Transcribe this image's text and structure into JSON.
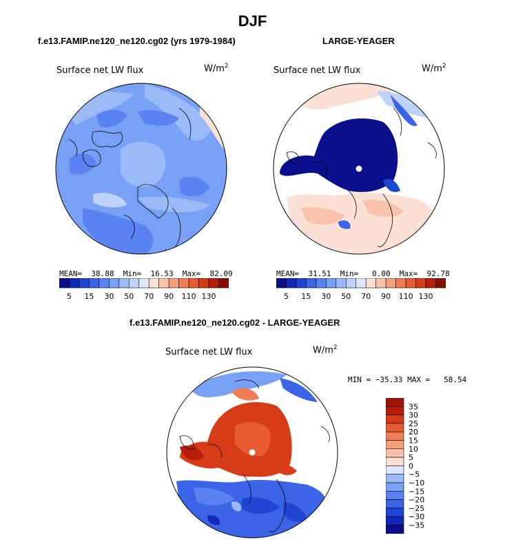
{
  "figure": {
    "title": "DJF"
  },
  "palette_abs": [
    "#0a0f8c",
    "#1228b8",
    "#1e46d2",
    "#3c64e6",
    "#5a82f0",
    "#78a0f5",
    "#9abaf8",
    "#bed3fa",
    "#dfe7fa",
    "#fbe1d5",
    "#f8c2ad",
    "#f5a07d",
    "#f07d55",
    "#e85c32",
    "#d73c19",
    "#b41e0a",
    "#820f06"
  ],
  "palette_diff": [
    "#0a0f8c",
    "#1228b8",
    "#1e46d2",
    "#3c64e6",
    "#5a82f0",
    "#78a0f5",
    "#9abaf8",
    "#dce6f8",
    "#fbe1d5",
    "#f8c2ad",
    "#f5a07d",
    "#f07d55",
    "#e85c32",
    "#d73c19",
    "#b41e0a",
    "#a01508"
  ],
  "chart_data": [
    {
      "type": "heatmap",
      "title": "f.e13.FAMIP.ne120_ne120.cg02 (yrs 1979-1984)",
      "subtitle": "Surface net LW flux",
      "units": "W/m",
      "units_exp": "2",
      "projection": "polar",
      "stats": {
        "mean": "38.88",
        "min": "16.53",
        "max": "82.09"
      },
      "stats_text": "MEAN=  38.88  Min=  16.53  Max=  82.09",
      "colorbar": {
        "orientation": "horizontal",
        "levels": [
          5,
          10,
          15,
          20,
          30,
          40,
          50,
          60,
          70,
          80,
          90,
          100,
          110,
          120,
          130
        ],
        "tick_labels": [
          "5",
          "15",
          "30",
          "50",
          "70",
          "90",
          "110",
          "130"
        ]
      }
    },
    {
      "type": "heatmap",
      "title": "LARGE-YEAGER",
      "subtitle": "Surface net LW flux",
      "units": "W/m",
      "units_exp": "2",
      "projection": "polar",
      "stats": {
        "mean": "31.51",
        "min": "0.00",
        "max": "92.78"
      },
      "stats_text": "MEAN=  31.51  Min=   0.00  Max=  92.78",
      "colorbar": {
        "orientation": "horizontal",
        "levels": [
          5,
          10,
          15,
          20,
          30,
          40,
          50,
          60,
          70,
          80,
          90,
          100,
          110,
          120,
          130
        ],
        "tick_labels": [
          "5",
          "15",
          "30",
          "50",
          "70",
          "90",
          "110",
          "130"
        ]
      }
    },
    {
      "type": "heatmap",
      "title": "f.e13.FAMIP.ne120_ne120.cg02 - LARGE-YEAGER",
      "subtitle": "Surface net LW flux",
      "units": "W/m",
      "units_exp": "2",
      "projection": "polar",
      "stats": {
        "min": "-35.33",
        "max": "58.54"
      },
      "stats_text": "MIN = −35.33 MAX =   58.54",
      "colorbar": {
        "orientation": "vertical",
        "levels": [
          -35,
          -30,
          -25,
          -20,
          -15,
          -10,
          -5,
          0,
          5,
          10,
          15,
          20,
          25,
          30,
          35
        ],
        "tick_labels": [
          "35",
          "30",
          "25",
          "20",
          "15",
          "10",
          "5",
          "0",
          "−5",
          "−10",
          "−15",
          "−20",
          "−25",
          "−30",
          "−35"
        ]
      }
    }
  ]
}
